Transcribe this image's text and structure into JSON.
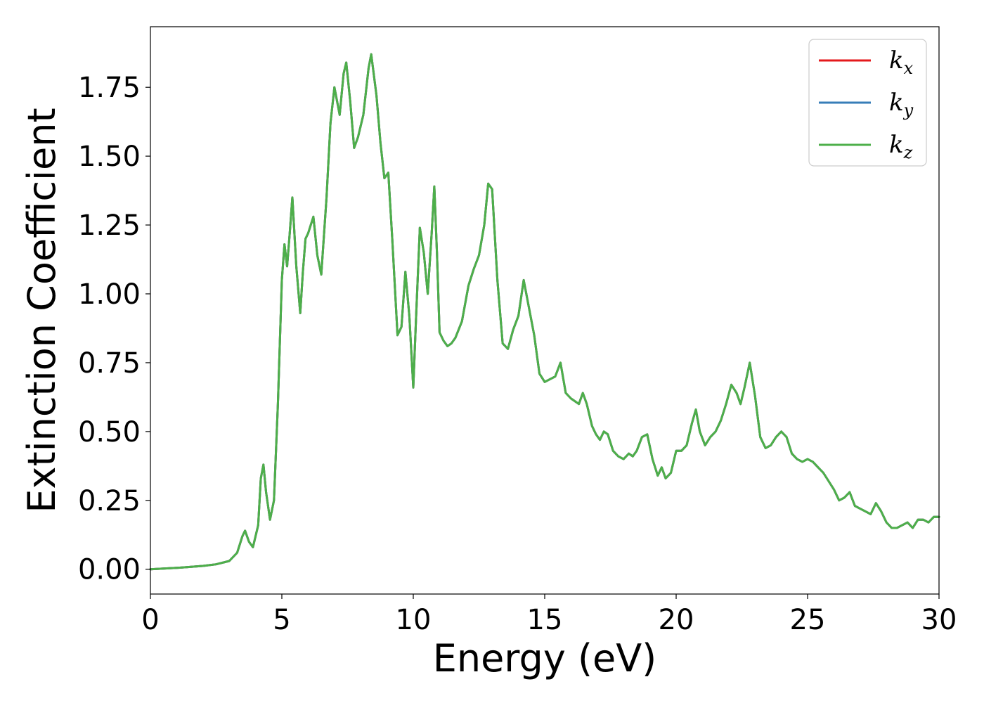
{
  "chart_data": {
    "type": "line",
    "title": "",
    "xlabel": "Energy (eV)",
    "ylabel": "Extinction Coefficient",
    "xlim": [
      0,
      30
    ],
    "ylim": [
      -0.09,
      1.97
    ],
    "xticks": [
      0,
      5,
      10,
      15,
      20,
      25,
      30
    ],
    "xtick_labels": [
      "0",
      "5",
      "10",
      "15",
      "20",
      "25",
      "30"
    ],
    "yticks": [
      0,
      0.25,
      0.5,
      0.75,
      1.0,
      1.25,
      1.5,
      1.75
    ],
    "ytick_labels": [
      "0.00",
      "0.25",
      "0.50",
      "0.75",
      "1.00",
      "1.25",
      "1.50",
      "1.75"
    ],
    "grid": false,
    "legend_position": "top-right",
    "series": [
      {
        "name": "k_x",
        "label_base": "k",
        "label_sub": "x",
        "color": "#e41a1c",
        "x": [
          0,
          1,
          2,
          2.5,
          3,
          3.3,
          3.5,
          3.6,
          3.75,
          3.9,
          4.1,
          4.2,
          4.3,
          4.4,
          4.55,
          4.7,
          4.85,
          5.0,
          5.1,
          5.2,
          5.3,
          5.4,
          5.55,
          5.7,
          5.8,
          5.9,
          6.0,
          6.2,
          6.35,
          6.5,
          6.7,
          6.85,
          7.0,
          7.2,
          7.35,
          7.45,
          7.6,
          7.75,
          7.9,
          8.1,
          8.3,
          8.4,
          8.6,
          8.75,
          8.9,
          9.05,
          9.2,
          9.4,
          9.55,
          9.7,
          9.85,
          10.0,
          10.1,
          10.25,
          10.4,
          10.55,
          10.7,
          10.8,
          10.9,
          11.0,
          11.15,
          11.3,
          11.45,
          11.6,
          11.85,
          12.1,
          12.3,
          12.5,
          12.7,
          12.85,
          13.0,
          13.2,
          13.4,
          13.6,
          13.8,
          14.0,
          14.2,
          14.4,
          14.6,
          14.8,
          15.0,
          15.2,
          15.4,
          15.6,
          15.8,
          16.0,
          16.15,
          16.3,
          16.45,
          16.6,
          16.8,
          16.95,
          17.1,
          17.25,
          17.4,
          17.6,
          17.8,
          18.0,
          18.2,
          18.35,
          18.5,
          18.7,
          18.9,
          19.1,
          19.3,
          19.45,
          19.6,
          19.8,
          20.0,
          20.2,
          20.4,
          20.6,
          20.75,
          20.9,
          21.1,
          21.3,
          21.5,
          21.7,
          21.9,
          22.1,
          22.3,
          22.45,
          22.6,
          22.8,
          23.0,
          23.2,
          23.4,
          23.6,
          23.8,
          24.0,
          24.2,
          24.4,
          24.6,
          24.8,
          25.0,
          25.2,
          25.4,
          25.6,
          25.8,
          26.0,
          26.2,
          26.4,
          26.6,
          26.8,
          27.0,
          27.2,
          27.4,
          27.6,
          27.8,
          28.0,
          28.2,
          28.4,
          28.6,
          28.8,
          29.0,
          29.2,
          29.4,
          29.6,
          29.8,
          30.0
        ],
        "y": [
          0.0,
          0.005,
          0.012,
          0.018,
          0.03,
          0.06,
          0.12,
          0.14,
          0.1,
          0.08,
          0.16,
          0.33,
          0.38,
          0.28,
          0.18,
          0.25,
          0.6,
          1.05,
          1.18,
          1.1,
          1.22,
          1.35,
          1.1,
          0.93,
          1.08,
          1.2,
          1.22,
          1.28,
          1.14,
          1.07,
          1.35,
          1.62,
          1.75,
          1.65,
          1.8,
          1.84,
          1.7,
          1.53,
          1.57,
          1.65,
          1.82,
          1.87,
          1.72,
          1.55,
          1.42,
          1.44,
          1.2,
          0.85,
          0.88,
          1.08,
          0.92,
          0.66,
          0.9,
          1.24,
          1.15,
          1.0,
          1.22,
          1.39,
          1.15,
          0.86,
          0.83,
          0.81,
          0.82,
          0.84,
          0.9,
          1.03,
          1.09,
          1.14,
          1.25,
          1.4,
          1.38,
          1.05,
          0.82,
          0.8,
          0.87,
          0.92,
          1.05,
          0.95,
          0.85,
          0.71,
          0.68,
          0.69,
          0.7,
          0.75,
          0.64,
          0.62,
          0.61,
          0.6,
          0.64,
          0.6,
          0.52,
          0.49,
          0.47,
          0.5,
          0.49,
          0.43,
          0.41,
          0.4,
          0.42,
          0.41,
          0.43,
          0.48,
          0.49,
          0.4,
          0.34,
          0.37,
          0.33,
          0.35,
          0.43,
          0.43,
          0.45,
          0.53,
          0.58,
          0.5,
          0.45,
          0.48,
          0.5,
          0.54,
          0.6,
          0.67,
          0.64,
          0.6,
          0.66,
          0.75,
          0.63,
          0.48,
          0.44,
          0.45,
          0.48,
          0.5,
          0.48,
          0.42,
          0.4,
          0.39,
          0.4,
          0.39,
          0.37,
          0.35,
          0.32,
          0.29,
          0.25,
          0.26,
          0.28,
          0.23,
          0.22,
          0.21,
          0.2,
          0.24,
          0.21,
          0.17,
          0.15,
          0.15,
          0.16,
          0.17,
          0.15,
          0.18,
          0.18,
          0.17,
          0.19,
          0.19
        ]
      },
      {
        "name": "k_y",
        "label_base": "k",
        "label_sub": "y",
        "color": "#377eb8",
        "x": [
          0,
          1,
          2,
          2.5,
          3,
          3.3,
          3.5,
          3.6,
          3.75,
          3.9,
          4.1,
          4.2,
          4.3,
          4.4,
          4.55,
          4.7,
          4.85,
          5.0,
          5.1,
          5.2,
          5.3,
          5.4,
          5.55,
          5.7,
          5.8,
          5.9,
          6.0,
          6.2,
          6.35,
          6.5,
          6.7,
          6.85,
          7.0,
          7.2,
          7.35,
          7.45,
          7.6,
          7.75,
          7.9,
          8.1,
          8.3,
          8.4,
          8.6,
          8.75,
          8.9,
          9.05,
          9.2,
          9.4,
          9.55,
          9.7,
          9.85,
          10.0,
          10.1,
          10.25,
          10.4,
          10.55,
          10.7,
          10.8,
          10.9,
          11.0,
          11.15,
          11.3,
          11.45,
          11.6,
          11.85,
          12.1,
          12.3,
          12.5,
          12.7,
          12.85,
          13.0,
          13.2,
          13.4,
          13.6,
          13.8,
          14.0,
          14.2,
          14.4,
          14.6,
          14.8,
          15.0,
          15.2,
          15.4,
          15.6,
          15.8,
          16.0,
          16.15,
          16.3,
          16.45,
          16.6,
          16.8,
          16.95,
          17.1,
          17.25,
          17.4,
          17.6,
          17.8,
          18.0,
          18.2,
          18.35,
          18.5,
          18.7,
          18.9,
          19.1,
          19.3,
          19.45,
          19.6,
          19.8,
          20.0,
          20.2,
          20.4,
          20.6,
          20.75,
          20.9,
          21.1,
          21.3,
          21.5,
          21.7,
          21.9,
          22.1,
          22.3,
          22.45,
          22.6,
          22.8,
          23.0,
          23.2,
          23.4,
          23.6,
          23.8,
          24.0,
          24.2,
          24.4,
          24.6,
          24.8,
          25.0,
          25.2,
          25.4,
          25.6,
          25.8,
          26.0,
          26.2,
          26.4,
          26.6,
          26.8,
          27.0,
          27.2,
          27.4,
          27.6,
          27.8,
          28.0,
          28.2,
          28.4,
          28.6,
          28.8,
          29.0,
          29.2,
          29.4,
          29.6,
          29.8,
          30.0
        ],
        "y": [
          0.0,
          0.005,
          0.012,
          0.018,
          0.03,
          0.06,
          0.12,
          0.14,
          0.1,
          0.08,
          0.16,
          0.33,
          0.38,
          0.28,
          0.18,
          0.25,
          0.6,
          1.05,
          1.18,
          1.1,
          1.22,
          1.35,
          1.1,
          0.93,
          1.08,
          1.2,
          1.22,
          1.28,
          1.14,
          1.07,
          1.35,
          1.62,
          1.75,
          1.65,
          1.8,
          1.84,
          1.7,
          1.53,
          1.57,
          1.65,
          1.82,
          1.87,
          1.72,
          1.55,
          1.42,
          1.44,
          1.2,
          0.85,
          0.88,
          1.08,
          0.92,
          0.66,
          0.9,
          1.24,
          1.15,
          1.0,
          1.22,
          1.39,
          1.15,
          0.86,
          0.83,
          0.81,
          0.82,
          0.84,
          0.9,
          1.03,
          1.09,
          1.14,
          1.25,
          1.4,
          1.38,
          1.05,
          0.82,
          0.8,
          0.87,
          0.92,
          1.05,
          0.95,
          0.85,
          0.71,
          0.68,
          0.69,
          0.7,
          0.75,
          0.64,
          0.62,
          0.61,
          0.6,
          0.64,
          0.6,
          0.52,
          0.49,
          0.47,
          0.5,
          0.49,
          0.43,
          0.41,
          0.4,
          0.42,
          0.41,
          0.43,
          0.48,
          0.49,
          0.4,
          0.34,
          0.37,
          0.33,
          0.35,
          0.43,
          0.43,
          0.45,
          0.53,
          0.58,
          0.5,
          0.45,
          0.48,
          0.5,
          0.54,
          0.6,
          0.67,
          0.64,
          0.6,
          0.66,
          0.75,
          0.63,
          0.48,
          0.44,
          0.45,
          0.48,
          0.5,
          0.48,
          0.42,
          0.4,
          0.39,
          0.4,
          0.39,
          0.37,
          0.35,
          0.32,
          0.29,
          0.25,
          0.26,
          0.28,
          0.23,
          0.22,
          0.21,
          0.2,
          0.24,
          0.21,
          0.17,
          0.15,
          0.15,
          0.16,
          0.17,
          0.15,
          0.18,
          0.18,
          0.17,
          0.19,
          0.19
        ]
      },
      {
        "name": "k_z",
        "label_base": "k",
        "label_sub": "z",
        "color": "#4daf4a",
        "x": [
          0,
          1,
          2,
          2.5,
          3,
          3.3,
          3.5,
          3.6,
          3.75,
          3.9,
          4.1,
          4.2,
          4.3,
          4.4,
          4.55,
          4.7,
          4.85,
          5.0,
          5.1,
          5.2,
          5.3,
          5.4,
          5.55,
          5.7,
          5.8,
          5.9,
          6.0,
          6.2,
          6.35,
          6.5,
          6.7,
          6.85,
          7.0,
          7.2,
          7.35,
          7.45,
          7.6,
          7.75,
          7.9,
          8.1,
          8.3,
          8.4,
          8.6,
          8.75,
          8.9,
          9.05,
          9.2,
          9.4,
          9.55,
          9.7,
          9.85,
          10.0,
          10.1,
          10.25,
          10.4,
          10.55,
          10.7,
          10.8,
          10.9,
          11.0,
          11.15,
          11.3,
          11.45,
          11.6,
          11.85,
          12.1,
          12.3,
          12.5,
          12.7,
          12.85,
          13.0,
          13.2,
          13.4,
          13.6,
          13.8,
          14.0,
          14.2,
          14.4,
          14.6,
          14.8,
          15.0,
          15.2,
          15.4,
          15.6,
          15.8,
          16.0,
          16.15,
          16.3,
          16.45,
          16.6,
          16.8,
          16.95,
          17.1,
          17.25,
          17.4,
          17.6,
          17.8,
          18.0,
          18.2,
          18.35,
          18.5,
          18.7,
          18.9,
          19.1,
          19.3,
          19.45,
          19.6,
          19.8,
          20.0,
          20.2,
          20.4,
          20.6,
          20.75,
          20.9,
          21.1,
          21.3,
          21.5,
          21.7,
          21.9,
          22.1,
          22.3,
          22.45,
          22.6,
          22.8,
          23.0,
          23.2,
          23.4,
          23.6,
          23.8,
          24.0,
          24.2,
          24.4,
          24.6,
          24.8,
          25.0,
          25.2,
          25.4,
          25.6,
          25.8,
          26.0,
          26.2,
          26.4,
          26.6,
          26.8,
          27.0,
          27.2,
          27.4,
          27.6,
          27.8,
          28.0,
          28.2,
          28.4,
          28.6,
          28.8,
          29.0,
          29.2,
          29.4,
          29.6,
          29.8,
          30.0
        ],
        "y": [
          0.0,
          0.005,
          0.012,
          0.018,
          0.03,
          0.06,
          0.12,
          0.14,
          0.1,
          0.08,
          0.16,
          0.33,
          0.38,
          0.28,
          0.18,
          0.25,
          0.6,
          1.05,
          1.18,
          1.1,
          1.22,
          1.35,
          1.1,
          0.93,
          1.08,
          1.2,
          1.22,
          1.28,
          1.14,
          1.07,
          1.35,
          1.62,
          1.75,
          1.65,
          1.8,
          1.84,
          1.7,
          1.53,
          1.57,
          1.65,
          1.82,
          1.87,
          1.72,
          1.55,
          1.42,
          1.44,
          1.2,
          0.85,
          0.88,
          1.08,
          0.92,
          0.66,
          0.9,
          1.24,
          1.15,
          1.0,
          1.22,
          1.39,
          1.15,
          0.86,
          0.83,
          0.81,
          0.82,
          0.84,
          0.9,
          1.03,
          1.09,
          1.14,
          1.25,
          1.4,
          1.38,
          1.05,
          0.82,
          0.8,
          0.87,
          0.92,
          1.05,
          0.95,
          0.85,
          0.71,
          0.68,
          0.69,
          0.7,
          0.75,
          0.64,
          0.62,
          0.61,
          0.6,
          0.64,
          0.6,
          0.52,
          0.49,
          0.47,
          0.5,
          0.49,
          0.43,
          0.41,
          0.4,
          0.42,
          0.41,
          0.43,
          0.48,
          0.49,
          0.4,
          0.34,
          0.37,
          0.33,
          0.35,
          0.43,
          0.43,
          0.45,
          0.53,
          0.58,
          0.5,
          0.45,
          0.48,
          0.5,
          0.54,
          0.6,
          0.67,
          0.64,
          0.6,
          0.66,
          0.75,
          0.63,
          0.48,
          0.44,
          0.45,
          0.48,
          0.5,
          0.48,
          0.42,
          0.4,
          0.39,
          0.4,
          0.39,
          0.37,
          0.35,
          0.32,
          0.29,
          0.25,
          0.26,
          0.28,
          0.23,
          0.22,
          0.21,
          0.2,
          0.24,
          0.21,
          0.17,
          0.15,
          0.15,
          0.16,
          0.17,
          0.15,
          0.18,
          0.18,
          0.17,
          0.19,
          0.19
        ]
      }
    ]
  }
}
